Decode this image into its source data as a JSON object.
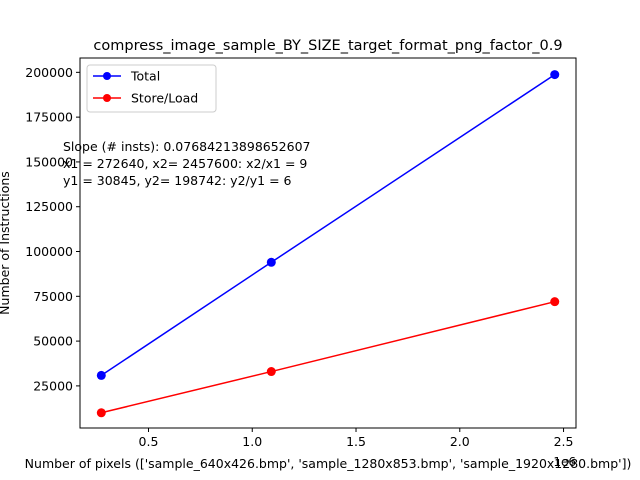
{
  "chart_data": {
    "type": "line",
    "title": "compress_image_sample_BY_SIZE_target_format_png_factor_0.9",
    "xlabel": "Number of pixels (['sample_640x426.bmp', 'sample_1280x853.bmp', 'sample_1920x1280.bmp'])",
    "ylabel": "Number of Instructions",
    "x_offset_label": "1e6",
    "x": [
      272640,
      1091840,
      2457600
    ],
    "xlim": [
      170000,
      2560000
    ],
    "ylim": [
      1500,
      208000
    ],
    "x_ticks": [
      {
        "value": 500000,
        "label": "0.5"
      },
      {
        "value": 1000000,
        "label": "1.0"
      },
      {
        "value": 1500000,
        "label": "1.5"
      },
      {
        "value": 2000000,
        "label": "2.0"
      },
      {
        "value": 2500000,
        "label": "2.5"
      }
    ],
    "y_ticks": [
      {
        "value": 25000,
        "label": "25000"
      },
      {
        "value": 50000,
        "label": "50000"
      },
      {
        "value": 75000,
        "label": "75000"
      },
      {
        "value": 100000,
        "label": "100000"
      },
      {
        "value": 125000,
        "label": "125000"
      },
      {
        "value": 150000,
        "label": "150000"
      },
      {
        "value": 175000,
        "label": "175000"
      },
      {
        "value": 200000,
        "label": "200000"
      }
    ],
    "series": [
      {
        "name": "Total",
        "color": "#0000ff",
        "values": [
          30845,
          94000,
          198742
        ]
      },
      {
        "name": "Store/Load",
        "color": "#ff0000",
        "values": [
          10000,
          33000,
          72000
        ]
      }
    ],
    "legend": "upper left",
    "grid": false,
    "annotations": [
      "Slope (# insts): 0.07684213898652607",
      "x1 = 272640, x2= 2457600: x2/x1 = 9",
      "y1 = 30845, y2= 198742: y2/y1 = 6"
    ]
  }
}
